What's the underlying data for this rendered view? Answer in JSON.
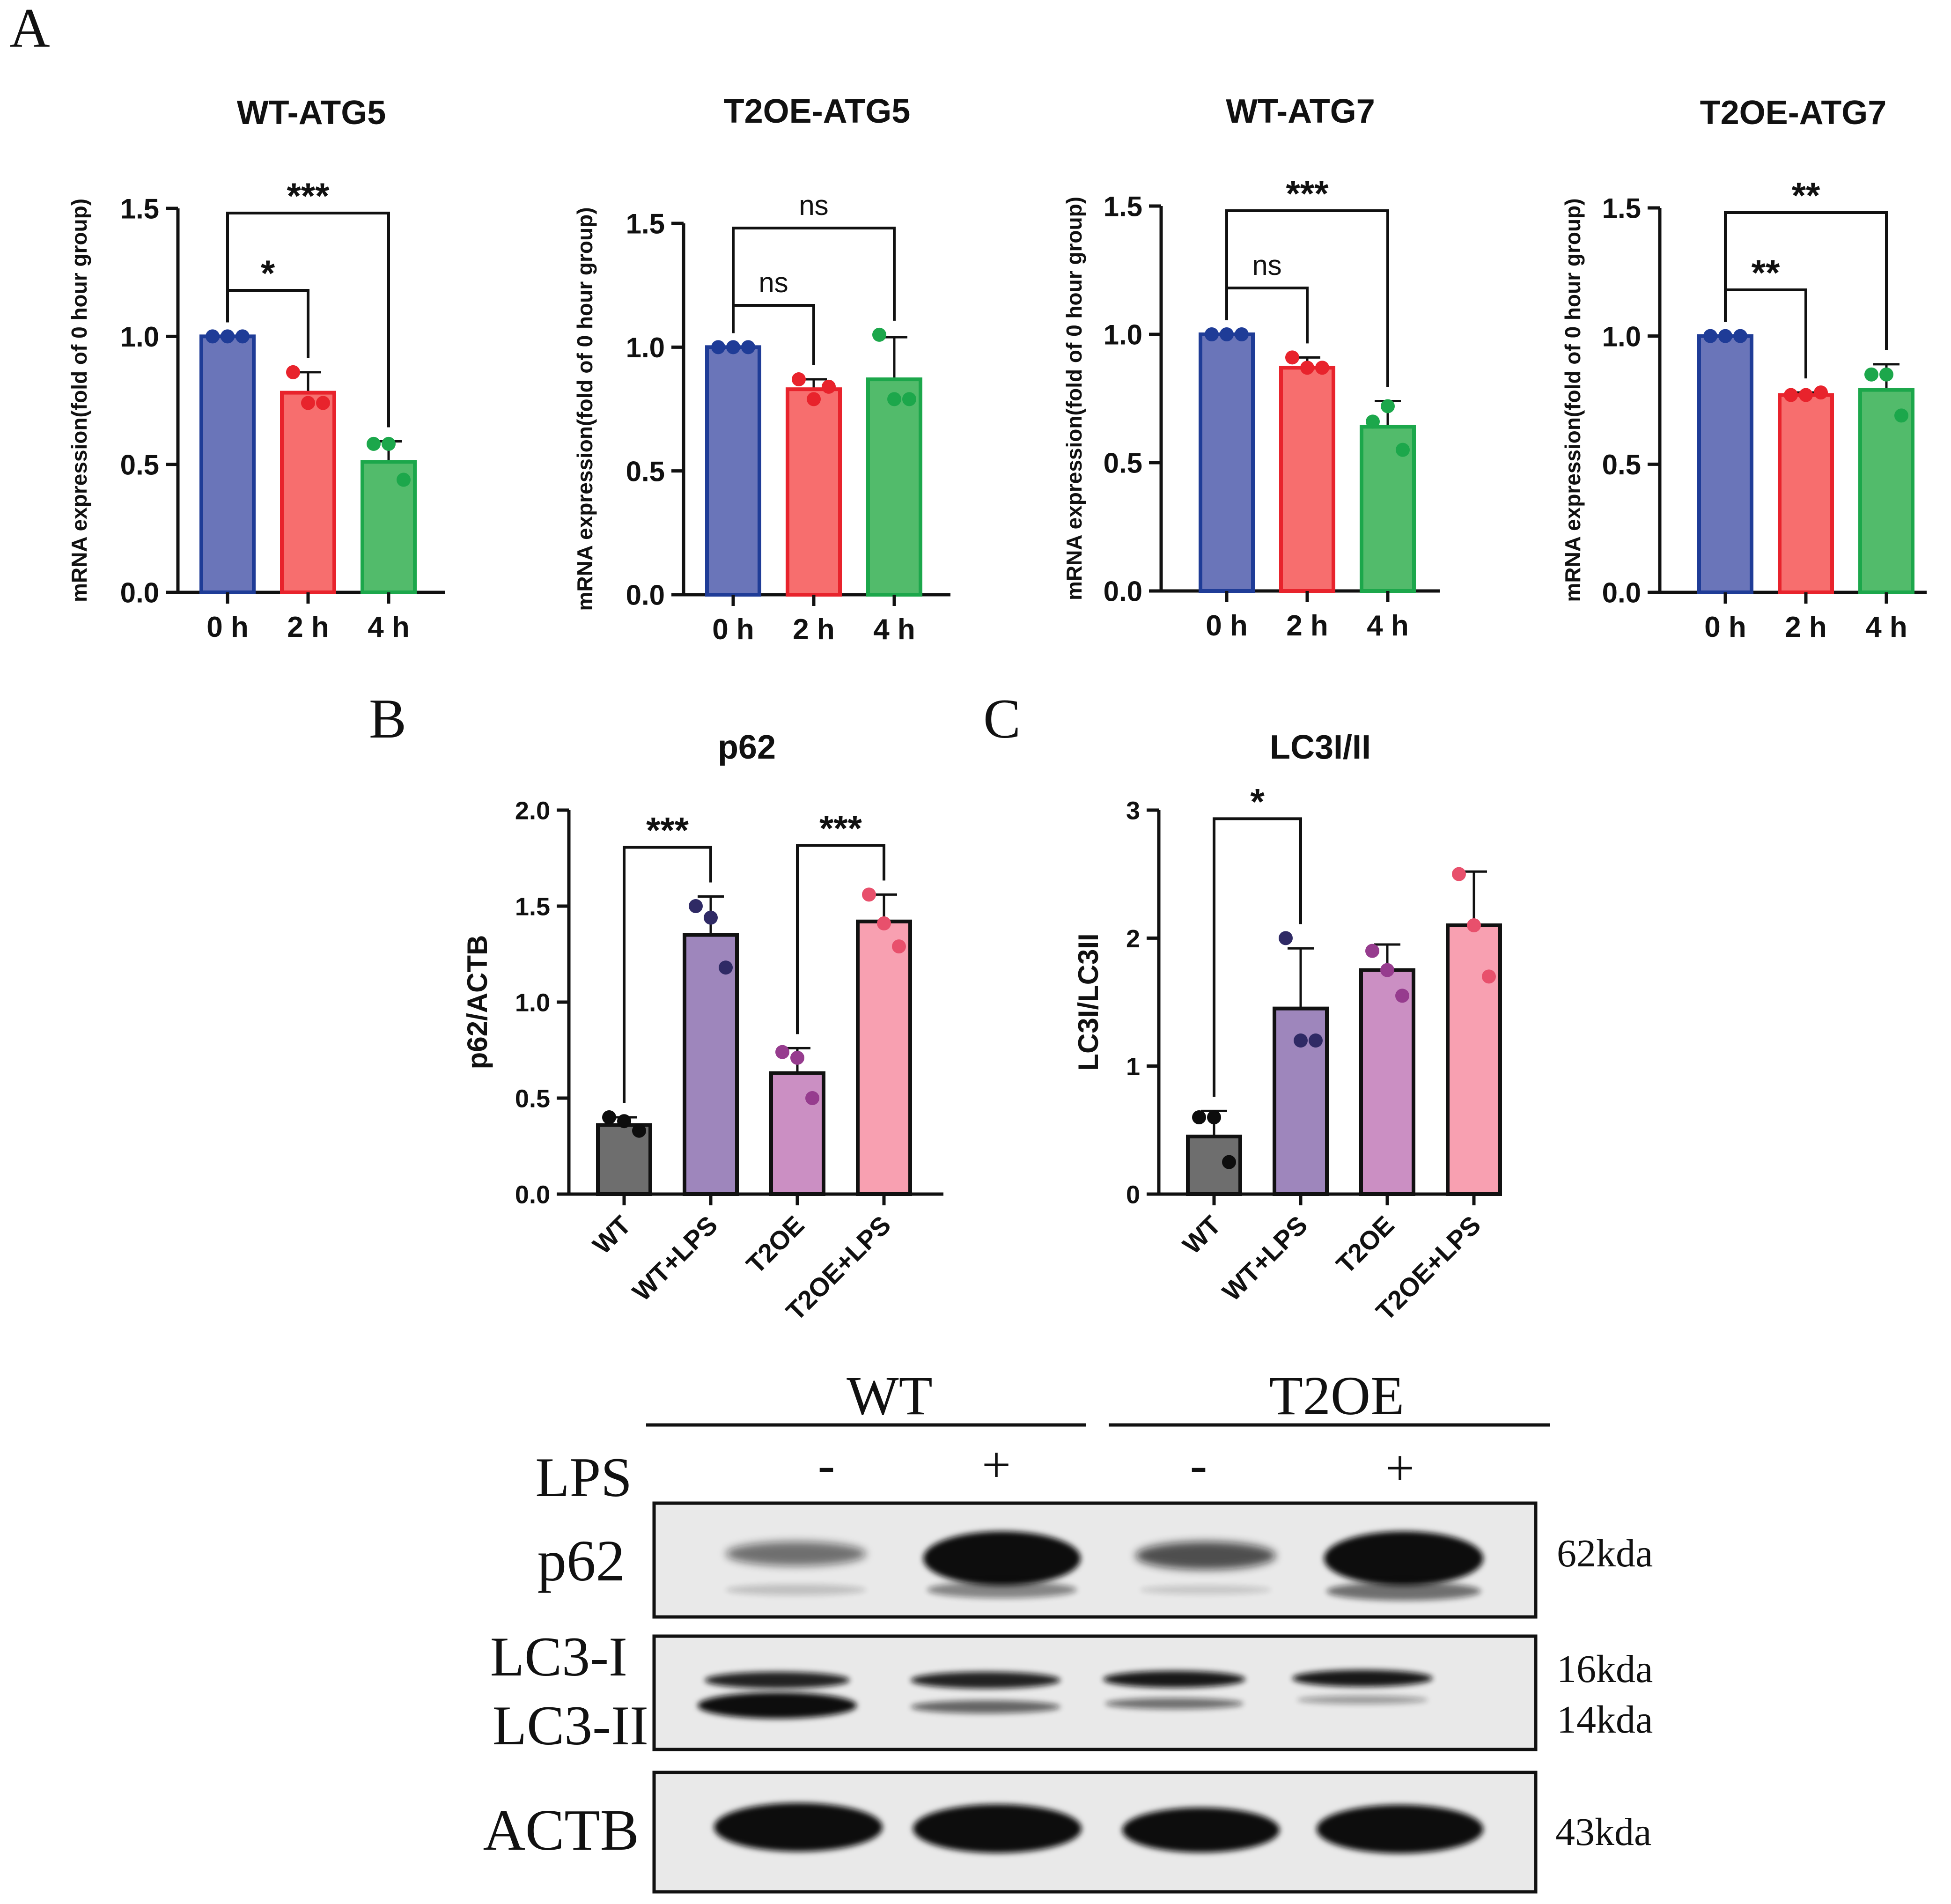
{
  "panel_letters": [
    "A",
    "B",
    "C"
  ],
  "chart_data": [
    {
      "type": "bar",
      "title": "WT-ATG5",
      "ylabel": "mRNA expression(fold of 0 hour group)",
      "ylim": [
        0,
        1.5
      ],
      "yticks": [
        "0.0",
        "0.5",
        "1.0",
        "1.5"
      ],
      "categories": [
        "0 h",
        "2 h",
        "4 h"
      ],
      "values": [
        1.0,
        0.78,
        0.51
      ],
      "errors": [
        0.0,
        0.08,
        0.08
      ],
      "points": [
        [
          1.0,
          1.0,
          1.0
        ],
        [
          0.86,
          0.74,
          0.74
        ],
        [
          0.58,
          0.58,
          0.44
        ]
      ],
      "colors": [
        "#6a75b9",
        "#f76e6e",
        "#52bb6b"
      ],
      "edge_colors": [
        "#1f3c97",
        "#e8232c",
        "#1ca74b"
      ],
      "brackets": [
        {
          "from": 0,
          "to": 1,
          "label": "*"
        },
        {
          "from": 0,
          "to": 2,
          "label": "***"
        }
      ]
    },
    {
      "type": "bar",
      "title": "T2OE-ATG5",
      "ylabel": "mRNA expression(fold of 0 hour group)",
      "ylim": [
        0,
        1.5
      ],
      "yticks": [
        "0.0",
        "0.5",
        "1.0",
        "1.5"
      ],
      "categories": [
        "0 h",
        "2 h",
        "4 h"
      ],
      "values": [
        1.0,
        0.83,
        0.87
      ],
      "errors": [
        0.0,
        0.04,
        0.17
      ],
      "points": [
        [
          1.0,
          1.0,
          1.0
        ],
        [
          0.87,
          0.79,
          0.84
        ],
        [
          1.05,
          0.79,
          0.79
        ]
      ],
      "colors": [
        "#6a75b9",
        "#f76e6e",
        "#52bb6b"
      ],
      "edge_colors": [
        "#1f3c97",
        "#e8232c",
        "#1ca74b"
      ],
      "brackets": [
        {
          "from": 0,
          "to": 1,
          "label": "ns"
        },
        {
          "from": 0,
          "to": 2,
          "label": "ns"
        }
      ]
    },
    {
      "type": "bar",
      "title": "WT-ATG7",
      "ylabel": "mRNA expression(fold of 0 hour group)",
      "ylim": [
        0,
        1.5
      ],
      "yticks": [
        "0.0",
        "0.5",
        "1.0",
        "1.5"
      ],
      "categories": [
        "0 h",
        "2 h",
        "4 h"
      ],
      "values": [
        1.0,
        0.87,
        0.64
      ],
      "errors": [
        0.0,
        0.04,
        0.1
      ],
      "points": [
        [
          1.0,
          1.0,
          1.0
        ],
        [
          0.91,
          0.87,
          0.87
        ],
        [
          0.66,
          0.72,
          0.55
        ]
      ],
      "colors": [
        "#6a75b9",
        "#f76e6e",
        "#52bb6b"
      ],
      "edge_colors": [
        "#1f3c97",
        "#e8232c",
        "#1ca74b"
      ],
      "brackets": [
        {
          "from": 0,
          "to": 1,
          "label": "ns"
        },
        {
          "from": 0,
          "to": 2,
          "label": "***"
        }
      ]
    },
    {
      "type": "bar",
      "title": "T2OE-ATG7",
      "ylabel": "mRNA expression(fold of 0 hour group)",
      "ylim": [
        0,
        1.5
      ],
      "yticks": [
        "0.0",
        "0.5",
        "1.0",
        "1.5"
      ],
      "categories": [
        "0 h",
        "2 h",
        "4 h"
      ],
      "values": [
        1.0,
        0.77,
        0.79
      ],
      "errors": [
        0.0,
        0.01,
        0.1
      ],
      "points": [
        [
          1.0,
          1.0,
          1.0
        ],
        [
          0.77,
          0.77,
          0.78
        ],
        [
          0.85,
          0.85,
          0.69
        ]
      ],
      "colors": [
        "#6a75b9",
        "#f76e6e",
        "#52bb6b"
      ],
      "edge_colors": [
        "#1f3c97",
        "#e8232c",
        "#1ca74b"
      ],
      "brackets": [
        {
          "from": 0,
          "to": 1,
          "label": "**"
        },
        {
          "from": 0,
          "to": 2,
          "label": "**"
        }
      ]
    },
    {
      "type": "bar",
      "title": "p62",
      "ylabel": "p62/ACTB",
      "ylim": [
        0,
        2.0
      ],
      "yticks": [
        "0.0",
        "0.5",
        "1.0",
        "1.5",
        "2.0"
      ],
      "categories": [
        "WT",
        "WT+LPS",
        "T2OE",
        "T2OE+LPS"
      ],
      "values": [
        0.36,
        1.35,
        0.63,
        1.42
      ],
      "errors": [
        0.04,
        0.2,
        0.13,
        0.14
      ],
      "points": [
        [
          0.4,
          0.38,
          0.33
        ],
        [
          1.5,
          1.44,
          1.18
        ],
        [
          0.74,
          0.71,
          0.5
        ],
        [
          1.56,
          1.41,
          1.29
        ]
      ],
      "colors": [
        "#6e6e6e",
        "#9e86bc",
        "#cb8fc3",
        "#f8a0b1"
      ],
      "point_colors": [
        "#0d0d0d",
        "#2f2a65",
        "#963c8e",
        "#e8506c"
      ],
      "brackets": [
        {
          "from": 0,
          "to": 1,
          "label": "***"
        },
        {
          "from": 2,
          "to": 3,
          "label": "***"
        }
      ]
    },
    {
      "type": "bar",
      "title": "LC3I/II",
      "ylabel": "LC3I/LC3II",
      "ylim": [
        0,
        3
      ],
      "yticks": [
        "0",
        "1",
        "2",
        "3"
      ],
      "categories": [
        "WT",
        "WT+LPS",
        "T2OE",
        "T2OE+LPS"
      ],
      "values": [
        0.45,
        1.45,
        1.75,
        2.1
      ],
      "errors": [
        0.2,
        0.47,
        0.2,
        0.42
      ],
      "points": [
        [
          0.6,
          0.6,
          0.25
        ],
        [
          2.0,
          1.2,
          1.2
        ],
        [
          1.9,
          1.75,
          1.55
        ],
        [
          2.5,
          2.1,
          1.7
        ]
      ],
      "colors": [
        "#6e6e6e",
        "#9e86bc",
        "#cb8fc3",
        "#f8a0b1"
      ],
      "point_colors": [
        "#0d0d0d",
        "#2f2a65",
        "#963c8e",
        "#e8506c"
      ],
      "brackets": [
        {
          "from": 0,
          "to": 1,
          "label": "*"
        }
      ]
    }
  ],
  "blot": {
    "groups": [
      "WT",
      "T2OE"
    ],
    "lps_label": "LPS",
    "lps_signs": [
      "-",
      "+",
      "-",
      "+"
    ],
    "rows": [
      {
        "label": "p62",
        "kda": "62kda"
      },
      {
        "label": "LC3-I",
        "kda": "16kda"
      },
      {
        "label": "LC3-II",
        "kda": "14kda"
      },
      {
        "label": "ACTB",
        "kda": "43kda"
      }
    ]
  }
}
